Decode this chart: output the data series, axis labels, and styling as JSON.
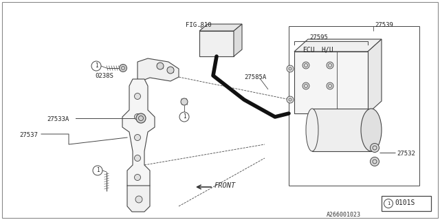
{
  "bg_color": "#ffffff",
  "border_color": "#999999",
  "lc": "#444444",
  "lc_thin": "#666666",
  "lc_dark": "#111111",
  "fig_width": 6.4,
  "fig_height": 3.2,
  "dpi": 100,
  "labels": {
    "fig810": "FIG.810",
    "27595": "27595",
    "27539": "27539",
    "27585A": "27585A",
    "ECU": "ECU",
    "HU": "H/U",
    "0238S": "0238S",
    "27533A": "27533A",
    "27537": "27537",
    "27532": "27532",
    "front": "FRONT",
    "part_num": "A266001023",
    "ref_box": "0101S"
  }
}
